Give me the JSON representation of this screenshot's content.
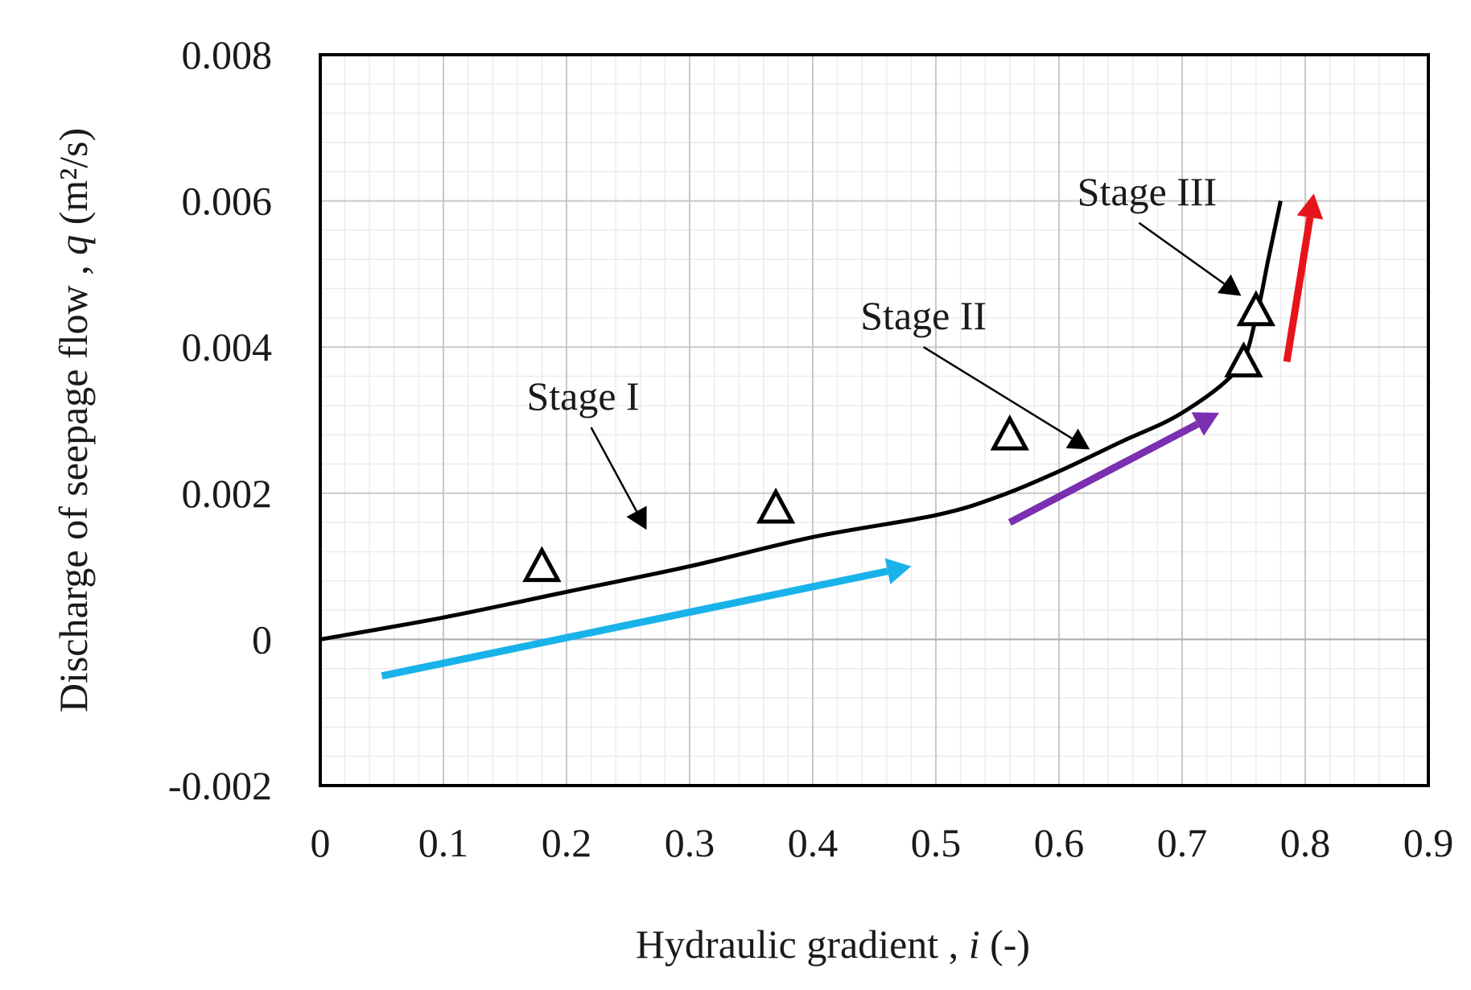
{
  "chart_data": {
    "type": "line",
    "title": "",
    "xlabel": "Hydraulic gradient ,",
    "xlabel_symbol": "i",
    "xlabel_unit": "(-)",
    "ylabel": "Discharge of seepage flow ,",
    "ylabel_symbol": "q",
    "ylabel_unit": "(m²/s)",
    "xlim": [
      0,
      0.9
    ],
    "ylim": [
      -0.002,
      0.008
    ],
    "grid": true,
    "x_ticks": [
      0,
      0.1,
      0.2,
      0.3,
      0.4,
      0.5,
      0.6,
      0.7,
      0.8,
      0.9
    ],
    "x_tick_labels": [
      "0",
      "0.1",
      "0.2",
      "0.3",
      "0.4",
      "0.5",
      "0.6",
      "0.7",
      "0.8",
      "0.9"
    ],
    "y_ticks": [
      -0.002,
      0,
      0.002,
      0.004,
      0.006,
      0.008
    ],
    "y_tick_labels": [
      "-0.002",
      "0",
      "0.002",
      "0.004",
      "0.006",
      "0.008"
    ],
    "series": [
      {
        "kind": "line",
        "color": "#000000",
        "x": [
          0,
          0.1,
          0.2,
          0.3,
          0.4,
          0.5,
          0.55,
          0.6,
          0.65,
          0.7,
          0.745,
          0.76,
          0.77,
          0.78
        ],
        "y": [
          0,
          0.0003,
          0.00065,
          0.001,
          0.0014,
          0.0017,
          0.00195,
          0.0023,
          0.0027,
          0.0031,
          0.0037,
          0.0044,
          0.0052,
          0.006
        ]
      },
      {
        "kind": "markers",
        "marker": "open-triangle",
        "color": "#000000",
        "x": [
          0.18,
          0.37,
          0.56,
          0.75,
          0.76
        ],
        "y": [
          0.001,
          0.0018,
          0.0028,
          0.0038,
          0.0045
        ]
      }
    ],
    "arrows": [
      {
        "color": "#1ab2ea",
        "from": [
          0.05,
          -0.0005
        ],
        "to": [
          0.48,
          0.001
        ]
      },
      {
        "color": "#7a30b0",
        "from": [
          0.56,
          0.0016
        ],
        "to": [
          0.73,
          0.0031
        ]
      },
      {
        "color": "#e8141b",
        "from": [
          0.785,
          0.0038
        ],
        "to": [
          0.807,
          0.0061
        ]
      }
    ],
    "annotations": [
      {
        "text": "Stage I",
        "pointer_from": [
          0.22,
          0.0029
        ],
        "pointer_to": [
          0.265,
          0.0015
        ]
      },
      {
        "text": "Stage II",
        "pointer_from": [
          0.49,
          0.004
        ],
        "pointer_to": [
          0.625,
          0.0026
        ]
      },
      {
        "text": "Stage III",
        "pointer_from": [
          0.665,
          0.0057
        ],
        "pointer_to": [
          0.748,
          0.0047
        ]
      }
    ]
  }
}
